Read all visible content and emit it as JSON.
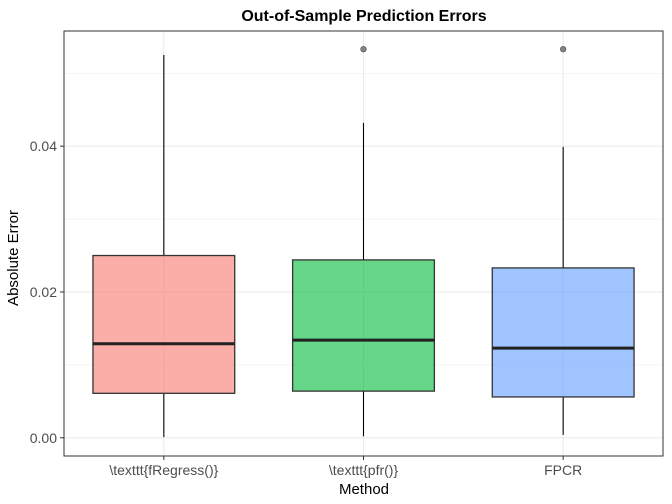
{
  "chart_data": {
    "type": "box",
    "title": "Out-of-Sample Prediction Errors",
    "xlabel": "Method",
    "ylabel": "Absolute Error",
    "ylim": [
      -0.0025,
      0.0558
    ],
    "yticks": [
      0.0,
      0.02,
      0.04
    ],
    "ytick_labels": [
      "0.00",
      "0.02",
      "0.04"
    ],
    "grid": true,
    "legend": "none",
    "categories": [
      "\\texttt{fRegress()}",
      "\\texttt{pfr()}",
      "FPCR"
    ],
    "boxes": [
      {
        "category": "\\texttt{fRegress()}",
        "color": "#f8766d",
        "whisker_low": 0.0001,
        "q1": 0.0061,
        "median": 0.0129,
        "q3": 0.025,
        "whisker_high": 0.0525,
        "outliers": []
      },
      {
        "category": "\\texttt{pfr()}",
        "color": "#00ba38",
        "whisker_low": 0.0002,
        "q1": 0.0064,
        "median": 0.0134,
        "q3": 0.0244,
        "whisker_high": 0.0432,
        "outliers": [
          0.0533
        ]
      },
      {
        "category": "FPCR",
        "color": "#619cff",
        "whisker_low": 0.0004,
        "q1": 0.0056,
        "median": 0.0123,
        "q3": 0.0233,
        "whisker_high": 0.0399,
        "outliers": [
          0.0533
        ]
      }
    ],
    "colors": {
      "grid": "#ebebeb",
      "panel_border": "#333333",
      "box_outline": "#333333"
    }
  }
}
